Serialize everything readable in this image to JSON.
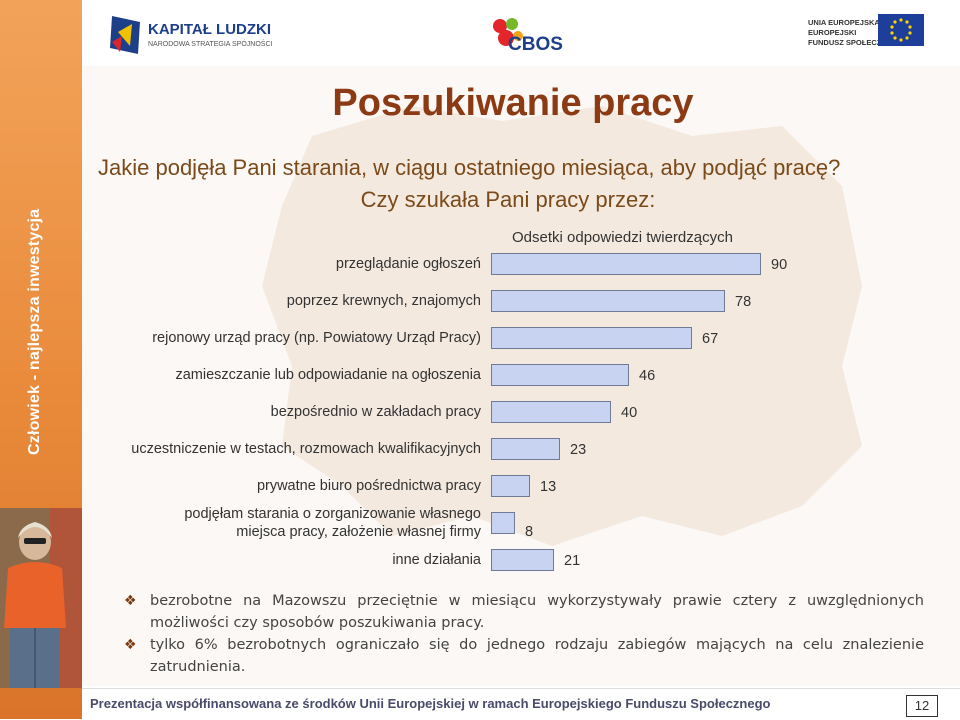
{
  "header": {
    "left_logo_title": "KAPITAŁ LUDZKI",
    "left_logo_subtitle": "NARODOWA STRATEGIA SPÓJNOŚCI",
    "center_logo_text": "CBOS",
    "right_logo_line1": "UNIA EUROPEJSKA",
    "right_logo_line2": "EUROPEJSKI",
    "right_logo_line3": "FUNDUSZ SPOŁECZNY"
  },
  "side_band": {
    "vertical_text": "Człowiek - najlepsza inwestycja"
  },
  "title": "Poszukiwanie pracy",
  "question_line1": "Jakie podjęła Pani starania, w ciągu ostatniego miesiąca, aby podjąć pracę?",
  "question_line2": "Czy szukała Pani pracy przez:",
  "chart_data": {
    "type": "bar",
    "orientation": "horizontal",
    "axis_title": "Odsetki odpowiedzi twierdzących",
    "categories": [
      "przeglądanie ogłoszeń",
      "poprzez krewnych, znajomych",
      "rejonowy urząd pracy (np. Powiatowy Urząd Pracy)",
      "zamieszczanie lub odpowiadanie na ogłoszenia",
      "bezpośrednio w zakładach pracy",
      "uczestniczenie w testach, rozmowach kwalifikacyjnych",
      "prywatne biuro pośrednictwa pracy",
      "podjęłam starania o zorganizowanie własnego miejsca pracy, założenie własnej firmy",
      "inne działania"
    ],
    "values": [
      90,
      78,
      67,
      46,
      40,
      23,
      13,
      8,
      21
    ],
    "bar_color": "#c7d3f1",
    "bar_border": "#6e7a96",
    "grid": false
  },
  "bullets": [
    "bezrobotne na Mazowszu przeciętnie w miesiącu wykorzystywały prawie cztery z uwzględnionych możliwości czy sposobów poszukiwania pracy.",
    "tylko 6% bezrobotnych ograniczało się do jednego rodzaju zabiegów mających na celu znalezienie zatrudnienia."
  ],
  "footer": {
    "text": "Prezentacja współfinansowana ze środków Unii Europejskiej w ramach Europejskiego Funduszu Społecznego",
    "page_number": "12"
  },
  "colors": {
    "title": "#8b3a14",
    "question": "#7a4a1a",
    "orange_band": "#e98a3a"
  }
}
